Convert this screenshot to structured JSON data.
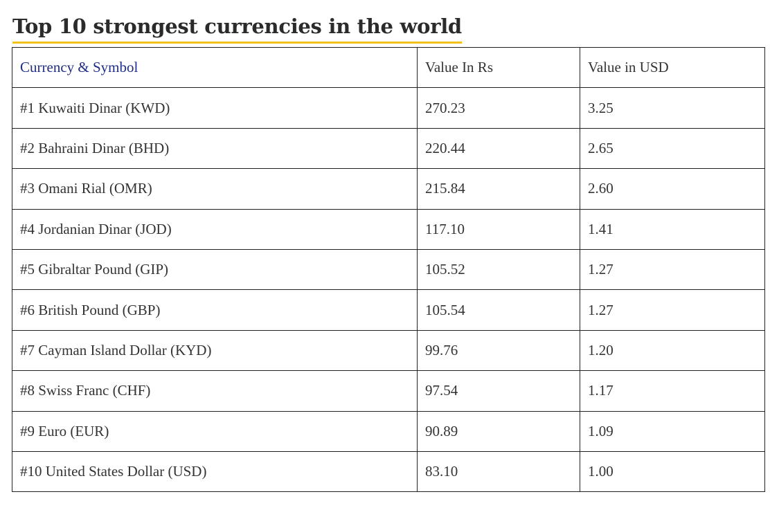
{
  "title": "Top 10 strongest currencies in the world",
  "colors": {
    "underline": "#f2c21b",
    "header_accent": "#1f2d84"
  },
  "table": {
    "headers": [
      "Currency & Symbol",
      "Value In Rs",
      "Value in USD"
    ],
    "rows": [
      [
        "#1 Kuwaiti Dinar (KWD)",
        "270.23",
        "3.25"
      ],
      [
        "#2 Bahraini Dinar (BHD)",
        "220.44",
        "2.65"
      ],
      [
        "#3 Omani Rial (OMR)",
        "215.84",
        "2.60"
      ],
      [
        "#4 Jordanian Dinar (JOD)",
        "117.10",
        "1.41"
      ],
      [
        "#5 Gibraltar Pound (GIP)",
        "105.52",
        "1.27"
      ],
      [
        "#6 British Pound (GBP)",
        "105.54",
        "1.27"
      ],
      [
        "#7 Cayman Island Dollar (KYD)",
        "99.76",
        "1.20"
      ],
      [
        "#8 Swiss Franc (CHF)",
        "97.54",
        "1.17"
      ],
      [
        "#9 Euro (EUR)",
        "90.89",
        "1.09"
      ],
      [
        "#10 United States Dollar (USD)",
        "83.10",
        "1.00"
      ]
    ]
  }
}
